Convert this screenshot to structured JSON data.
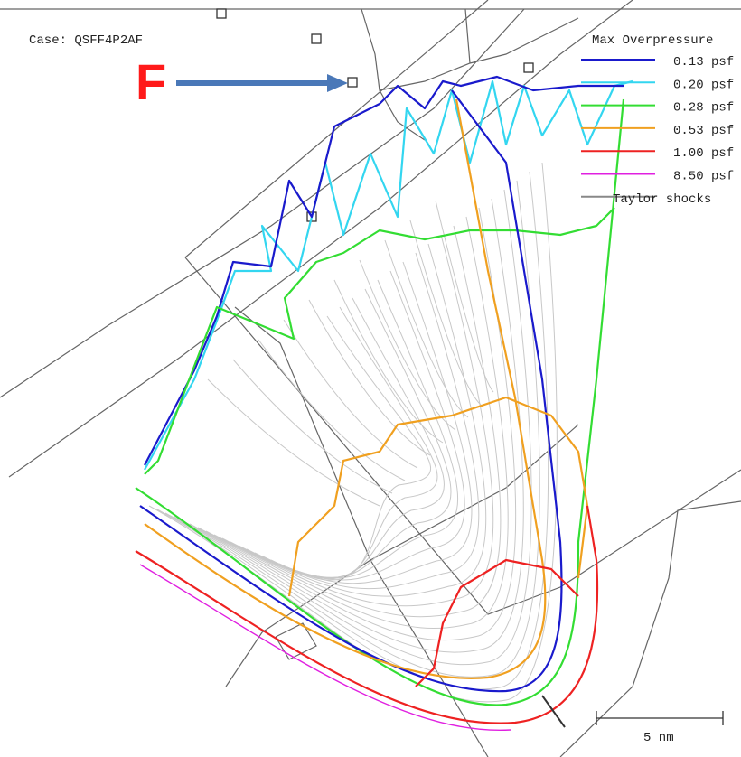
{
  "case_label": "Case: QSFF4P2AF",
  "marker": "F",
  "legend": {
    "title": "Max Overpressure",
    "entries": [
      {
        "label": "0.13 psf",
        "color": "#1a1acc"
      },
      {
        "label": "0.20 psf",
        "color": "#33d6f0"
      },
      {
        "label": "0.28 psf",
        "color": "#33dd33"
      },
      {
        "label": "0.53 psf",
        "color": "#f0a020"
      },
      {
        "label": "1.00 psf",
        "color": "#ee2222"
      },
      {
        "label": "8.50 psf",
        "color": "#e020e0"
      },
      {
        "label": "Taylor shocks",
        "color": "#888888"
      }
    ]
  },
  "scale_bar": "5 nm"
}
